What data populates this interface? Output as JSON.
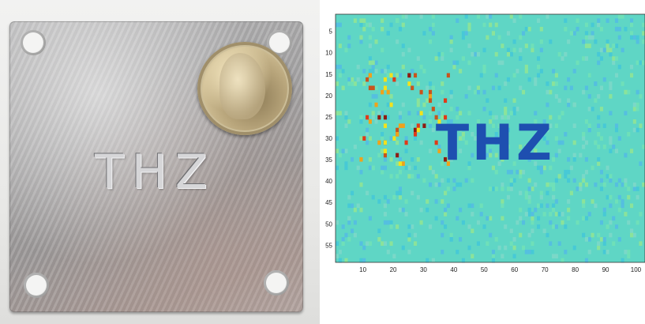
{
  "photo": {
    "engraving_text": "THZ",
    "plate_color": "#a8a7a8",
    "coin_color": "#c2ae85"
  },
  "chart_data": {
    "type": "heatmap",
    "colormap": "jet",
    "title": "",
    "xlabel": "",
    "ylabel": "",
    "xlim": [
      1,
      103
    ],
    "ylim": [
      59,
      1
    ],
    "y_direction": "reversed",
    "x_ticks": [
      10,
      20,
      30,
      40,
      50,
      60,
      70,
      80,
      90,
      100
    ],
    "y_ticks": [
      5,
      10,
      15,
      20,
      25,
      30,
      35,
      40,
      45,
      50,
      55
    ],
    "image_text": "THZ",
    "background_color": "#5fd6c5",
    "text_color": "#1e4fb0",
    "grid": false
  }
}
